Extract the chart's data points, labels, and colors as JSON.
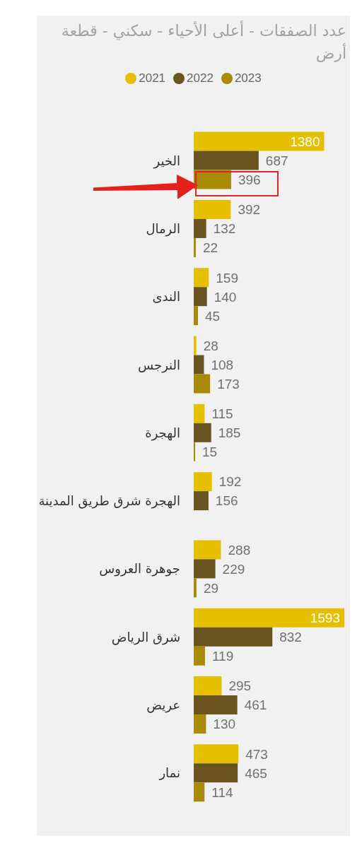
{
  "chart_data": {
    "type": "bar",
    "orientation": "horizontal",
    "title": "عدد الصفقات - أعلى الأحياء - سكني - قطعة أرض",
    "categories": [
      "الخير",
      "الرمال",
      "الندى",
      "النرجس",
      "الهجرة",
      "الهجرة شرق طريق المدينة",
      "جوهرة العروس",
      "شرق الرياض",
      "عريض",
      "نمار"
    ],
    "series": [
      {
        "name": "2021",
        "color": "#e6c000",
        "values": [
          1380,
          392,
          159,
          28,
          115,
          192,
          288,
          1593,
          295,
          473
        ]
      },
      {
        "name": "2022",
        "color": "#6a5420",
        "values": [
          687,
          132,
          140,
          108,
          185,
          156,
          229,
          832,
          461,
          465
        ]
      },
      {
        "name": "2023",
        "color": "#a98a06",
        "values": [
          396,
          22,
          45,
          173,
          15,
          null,
          29,
          119,
          130,
          114
        ]
      }
    ],
    "data_labels": true,
    "legend": "top"
  }
}
